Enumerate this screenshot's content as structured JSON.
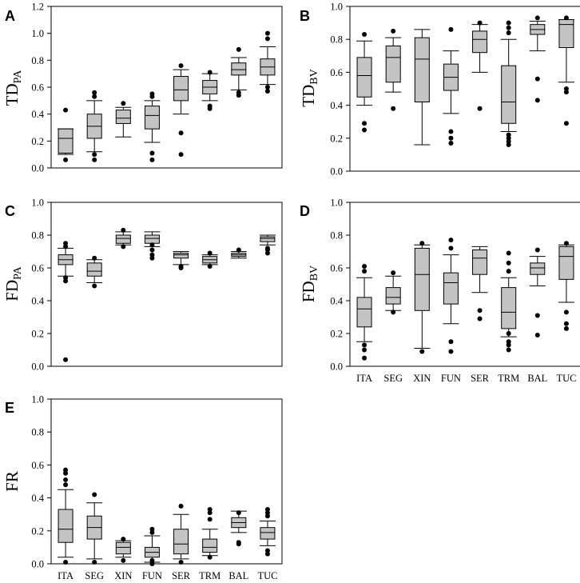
{
  "chart_data": [
    {
      "type": "box",
      "panel": "A",
      "ylabel_main": "TD",
      "ylabel_sub": "PA",
      "ylim": [
        0,
        1.2
      ],
      "yticks": [
        "0.0",
        "0.2",
        "0.4",
        "0.6",
        "0.8",
        "1.0",
        "1.2"
      ],
      "categories": [
        "ITA",
        "SEG",
        "XIN",
        "FUN",
        "SER",
        "TRM",
        "BAL",
        "TUC"
      ],
      "show_xlabels": false,
      "boxes": [
        {
          "min": 0.1,
          "q1": 0.11,
          "median": 0.22,
          "q3": 0.29,
          "max": 0.29,
          "outliers": [
            0.06,
            0.43
          ]
        },
        {
          "min": 0.12,
          "q1": 0.22,
          "median": 0.31,
          "q3": 0.4,
          "max": 0.5,
          "outliers": [
            0.06,
            0.1,
            0.53,
            0.56
          ]
        },
        {
          "min": 0.23,
          "q1": 0.33,
          "median": 0.37,
          "q3": 0.43,
          "max": 0.45,
          "outliers": [
            0.48
          ]
        },
        {
          "min": 0.19,
          "q1": 0.29,
          "median": 0.39,
          "q3": 0.46,
          "max": 0.5,
          "outliers": [
            0.06,
            0.11,
            0.53,
            0.55
          ]
        },
        {
          "min": 0.4,
          "q1": 0.5,
          "median": 0.58,
          "q3": 0.68,
          "max": 0.73,
          "outliers": [
            0.1,
            0.26,
            0.76
          ]
        },
        {
          "min": 0.5,
          "q1": 0.55,
          "median": 0.6,
          "q3": 0.65,
          "max": 0.7,
          "outliers": [
            0.44,
            0.46,
            0.71
          ]
        },
        {
          "min": 0.58,
          "q1": 0.69,
          "median": 0.73,
          "q3": 0.78,
          "max": 0.82,
          "outliers": [
            0.54,
            0.56,
            0.88
          ]
        },
        {
          "min": 0.62,
          "q1": 0.69,
          "median": 0.75,
          "q3": 0.81,
          "max": 0.9,
          "outliers": [
            0.57,
            0.6,
            0.96,
            1.0
          ]
        }
      ]
    },
    {
      "type": "box",
      "panel": "B",
      "ylabel_main": "TD",
      "ylabel_sub": "BV",
      "ylim": [
        0,
        1.0
      ],
      "yticks": [
        "0.0",
        "0.2",
        "0.4",
        "0.6",
        "0.8",
        "1.0"
      ],
      "categories": [
        "ITA",
        "SEG",
        "XIN",
        "FUN",
        "SER",
        "TRM",
        "BAL",
        "TUC"
      ],
      "show_xlabels": false,
      "boxes": [
        {
          "min": 0.4,
          "q1": 0.45,
          "median": 0.58,
          "q3": 0.69,
          "max": 0.79,
          "outliers": [
            0.25,
            0.29,
            0.83
          ]
        },
        {
          "min": 0.48,
          "q1": 0.54,
          "median": 0.69,
          "q3": 0.76,
          "max": 0.81,
          "outliers": [
            0.38,
            0.85
          ]
        },
        {
          "min": 0.16,
          "q1": 0.42,
          "median": 0.68,
          "q3": 0.81,
          "max": 0.86,
          "outliers": []
        },
        {
          "min": 0.35,
          "q1": 0.49,
          "median": 0.57,
          "q3": 0.65,
          "max": 0.73,
          "outliers": [
            0.17,
            0.2,
            0.24,
            0.86
          ]
        },
        {
          "min": 0.6,
          "q1": 0.72,
          "median": 0.8,
          "q3": 0.85,
          "max": 0.89,
          "outliers": [
            0.38,
            0.9
          ]
        },
        {
          "min": 0.24,
          "q1": 0.29,
          "median": 0.42,
          "q3": 0.64,
          "max": 0.8,
          "outliers": [
            0.16,
            0.18,
            0.2,
            0.22,
            0.84,
            0.87,
            0.9
          ]
        },
        {
          "min": 0.73,
          "q1": 0.83,
          "median": 0.86,
          "q3": 0.89,
          "max": 0.91,
          "outliers": [
            0.43,
            0.56,
            0.93
          ]
        },
        {
          "min": 0.54,
          "q1": 0.75,
          "median": 0.89,
          "q3": 0.92,
          "max": 0.92,
          "outliers": [
            0.29,
            0.48,
            0.5,
            0.93
          ]
        }
      ]
    },
    {
      "type": "box",
      "panel": "C",
      "ylabel_main": "FD",
      "ylabel_sub": "PA",
      "ylim": [
        0,
        1.0
      ],
      "yticks": [
        "0.0",
        "0.2",
        "0.4",
        "0.6",
        "0.8",
        "1.0"
      ],
      "categories": [
        "ITA",
        "SEG",
        "XIN",
        "FUN",
        "SER",
        "TRM",
        "BAL",
        "TUC"
      ],
      "show_xlabels": false,
      "boxes": [
        {
          "min": 0.55,
          "q1": 0.62,
          "median": 0.65,
          "q3": 0.68,
          "max": 0.72,
          "outliers": [
            0.04,
            0.52,
            0.54,
            0.73,
            0.75
          ]
        },
        {
          "min": 0.51,
          "q1": 0.55,
          "median": 0.58,
          "q3": 0.63,
          "max": 0.65,
          "outliers": [
            0.49,
            0.66
          ]
        },
        {
          "min": 0.74,
          "q1": 0.75,
          "median": 0.78,
          "q3": 0.8,
          "max": 0.82,
          "outliers": [
            0.73,
            0.83
          ]
        },
        {
          "min": 0.73,
          "q1": 0.75,
          "median": 0.78,
          "q3": 0.8,
          "max": 0.82,
          "outliers": [
            0.66,
            0.68,
            0.71,
            0.74
          ]
        },
        {
          "min": 0.62,
          "q1": 0.66,
          "median": 0.68,
          "q3": 0.69,
          "max": 0.7,
          "outliers": [
            0.6,
            0.61
          ]
        },
        {
          "min": 0.62,
          "q1": 0.63,
          "median": 0.65,
          "q3": 0.67,
          "max": 0.68,
          "outliers": [
            0.61,
            0.69
          ]
        },
        {
          "min": 0.66,
          "q1": 0.67,
          "median": 0.68,
          "q3": 0.69,
          "max": 0.7,
          "outliers": [
            0.71
          ]
        },
        {
          "min": 0.74,
          "q1": 0.76,
          "median": 0.78,
          "q3": 0.79,
          "max": 0.8,
          "outliers": [
            0.69,
            0.71,
            0.72
          ]
        }
      ]
    },
    {
      "type": "box",
      "panel": "D",
      "ylabel_main": "FD",
      "ylabel_sub": "BV",
      "ylim": [
        0,
        1.0
      ],
      "yticks": [
        "0.0",
        "0.2",
        "0.4",
        "0.6",
        "0.8",
        "1.0"
      ],
      "categories": [
        "ITA",
        "SEG",
        "XIN",
        "FUN",
        "SER",
        "TRM",
        "BAL",
        "TUC"
      ],
      "show_xlabels": true,
      "boxes": [
        {
          "min": 0.15,
          "q1": 0.24,
          "median": 0.35,
          "q3": 0.42,
          "max": 0.54,
          "outliers": [
            0.05,
            0.1,
            0.13,
            0.58,
            0.61
          ]
        },
        {
          "min": 0.34,
          "q1": 0.38,
          "median": 0.42,
          "q3": 0.48,
          "max": 0.55,
          "outliers": [
            0.33,
            0.57
          ]
        },
        {
          "min": 0.11,
          "q1": 0.34,
          "median": 0.56,
          "q3": 0.72,
          "max": 0.74,
          "outliers": [
            0.09,
            0.75
          ]
        },
        {
          "min": 0.26,
          "q1": 0.38,
          "median": 0.51,
          "q3": 0.57,
          "max": 0.68,
          "outliers": [
            0.09,
            0.15,
            0.72,
            0.77
          ]
        },
        {
          "min": 0.45,
          "q1": 0.56,
          "median": 0.66,
          "q3": 0.71,
          "max": 0.73,
          "outliers": [
            0.29,
            0.34
          ]
        },
        {
          "min": 0.18,
          "q1": 0.23,
          "median": 0.33,
          "q3": 0.48,
          "max": 0.54,
          "outliers": [
            0.1,
            0.13,
            0.15,
            0.2,
            0.58,
            0.63,
            0.69
          ]
        },
        {
          "min": 0.49,
          "q1": 0.56,
          "median": 0.6,
          "q3": 0.63,
          "max": 0.67,
          "outliers": [
            0.19,
            0.31,
            0.71
          ]
        },
        {
          "min": 0.39,
          "q1": 0.53,
          "median": 0.67,
          "q3": 0.73,
          "max": 0.74,
          "outliers": [
            0.23,
            0.26,
            0.33,
            0.75
          ]
        }
      ]
    },
    {
      "type": "box",
      "panel": "E",
      "ylabel_main": "FR",
      "ylabel_sub": "",
      "ylim": [
        0,
        1.0
      ],
      "yticks": [
        "0.0",
        "0.2",
        "0.4",
        "0.6",
        "0.8",
        "1.0"
      ],
      "categories": [
        "ITA",
        "SEG",
        "XIN",
        "FUN",
        "SER",
        "TRM",
        "BAL",
        "TUC"
      ],
      "show_xlabels": true,
      "boxes": [
        {
          "min": 0.04,
          "q1": 0.13,
          "median": 0.21,
          "q3": 0.33,
          "max": 0.45,
          "outliers": [
            0.01,
            0.48,
            0.51,
            0.55,
            0.57
          ]
        },
        {
          "min": 0.03,
          "q1": 0.15,
          "median": 0.22,
          "q3": 0.29,
          "max": 0.37,
          "outliers": [
            0.01,
            0.42
          ]
        },
        {
          "min": 0.04,
          "q1": 0.06,
          "median": 0.1,
          "q3": 0.13,
          "max": 0.14,
          "outliers": [
            0.02,
            0.15
          ]
        },
        {
          "min": 0.01,
          "q1": 0.04,
          "median": 0.07,
          "q3": 0.1,
          "max": 0.17,
          "outliers": [
            0.0,
            0.02,
            0.19,
            0.21
          ]
        },
        {
          "min": 0.03,
          "q1": 0.06,
          "median": 0.12,
          "q3": 0.21,
          "max": 0.3,
          "outliers": [
            0.01,
            0.35
          ]
        },
        {
          "min": 0.05,
          "q1": 0.07,
          "median": 0.1,
          "q3": 0.15,
          "max": 0.21,
          "outliers": [
            0.04,
            0.27,
            0.31,
            0.33
          ]
        },
        {
          "min": 0.19,
          "q1": 0.22,
          "median": 0.25,
          "q3": 0.28,
          "max": 0.32,
          "outliers": [
            0.12,
            0.13,
            0.31
          ]
        },
        {
          "min": 0.11,
          "q1": 0.15,
          "median": 0.19,
          "q3": 0.22,
          "max": 0.26,
          "outliers": [
            0.06,
            0.08,
            0.29,
            0.31,
            0.33
          ]
        }
      ]
    }
  ]
}
